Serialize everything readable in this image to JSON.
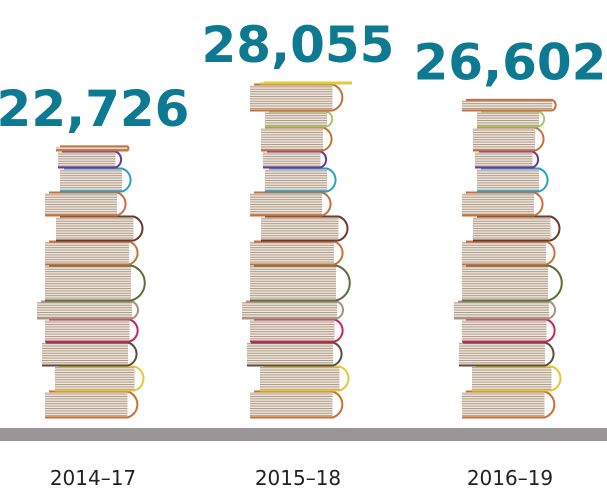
{
  "chart_data": {
    "type": "bar",
    "categories": [
      "2014–17",
      "2015–18",
      "2016–19"
    ],
    "values": [
      22726,
      28055,
      26602
    ],
    "value_labels": [
      "22,726",
      "28,055",
      "26,602"
    ],
    "color": "#0e7a92"
  }
}
